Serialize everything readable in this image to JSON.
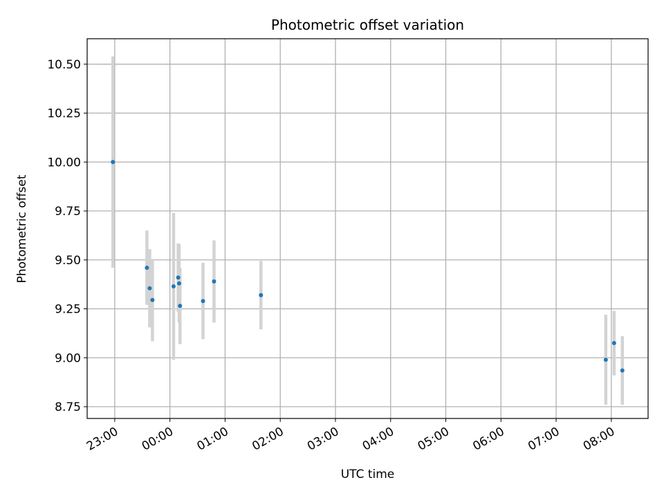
{
  "chart_data": {
    "type": "scatter",
    "title": "Photometric offset variation",
    "xlabel": "UTC time",
    "ylabel": "Photometric offset",
    "xlim": [
      "22:30",
      "08:40"
    ],
    "ylim": [
      8.69,
      10.63
    ],
    "x_ticks": [
      "23:00",
      "00:00",
      "01:00",
      "02:00",
      "03:00",
      "04:00",
      "05:00",
      "06:00",
      "07:00",
      "08:00"
    ],
    "y_ticks": [
      8.75,
      9.0,
      9.25,
      9.5,
      9.75,
      10.0,
      10.25,
      10.5
    ],
    "y_tick_labels": [
      "8.75",
      "9.00",
      "9.25",
      "9.50",
      "9.75",
      "10.00",
      "10.25",
      "10.50"
    ],
    "grid": true,
    "colors": {
      "point": "#1f77b4",
      "errorbar": "#d3d3d3",
      "grid": "#b0b0b0"
    },
    "points": [
      {
        "t": "22:58",
        "y": 10.0,
        "err": 0.54
      },
      {
        "t": "23:35",
        "y": 9.46,
        "err": 0.19
      },
      {
        "t": "23:38",
        "y": 9.355,
        "err": 0.2
      },
      {
        "t": "23:41",
        "y": 9.295,
        "err": 0.21
      },
      {
        "t": "00:04",
        "y": 9.365,
        "err": 0.375
      },
      {
        "t": "00:09",
        "y": 9.41,
        "err": 0.175
      },
      {
        "t": "00:10",
        "y": 9.38,
        "err": 0.2
      },
      {
        "t": "00:11",
        "y": 9.265,
        "err": 0.195
      },
      {
        "t": "00:36",
        "y": 9.29,
        "err": 0.195
      },
      {
        "t": "00:48",
        "y": 9.39,
        "err": 0.21
      },
      {
        "t": "01:39",
        "y": 9.32,
        "err": 0.175
      },
      {
        "t": "07:54",
        "y": 8.99,
        "err": 0.23
      },
      {
        "t": "08:03",
        "y": 9.075,
        "err": 0.165
      },
      {
        "t": "08:12",
        "y": 8.935,
        "err": 0.175
      }
    ]
  }
}
